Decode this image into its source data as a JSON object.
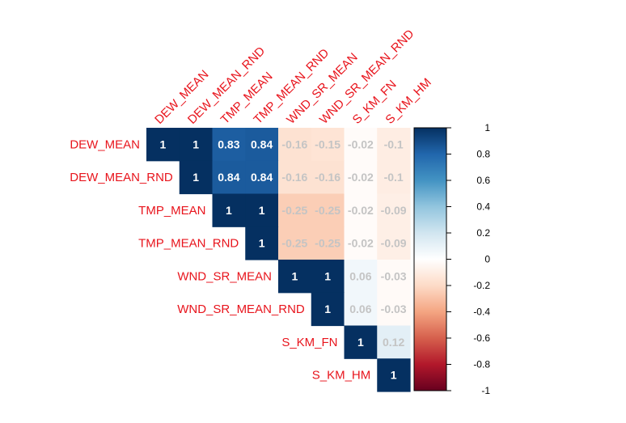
{
  "chart_data": {
    "type": "heatmap",
    "variables": [
      "DEW_MEAN",
      "DEW_MEAN_RND",
      "TMP_MEAN",
      "TMP_MEAN_RND",
      "WND_SR_MEAN",
      "WND_SR_MEAN_RND",
      "S_KM_FN",
      "S_KM_HM"
    ],
    "matrix": [
      [
        1,
        1,
        0.83,
        0.84,
        -0.16,
        -0.15,
        -0.02,
        -0.1
      ],
      [
        null,
        1,
        0.84,
        0.84,
        -0.16,
        -0.16,
        -0.02,
        -0.1
      ],
      [
        null,
        null,
        1,
        1,
        -0.25,
        -0.25,
        -0.02,
        -0.09
      ],
      [
        null,
        null,
        null,
        1,
        -0.25,
        -0.25,
        -0.02,
        -0.09
      ],
      [
        null,
        null,
        null,
        null,
        1,
        1,
        0.06,
        -0.03
      ],
      [
        null,
        null,
        null,
        null,
        null,
        1,
        0.06,
        -0.03
      ],
      [
        null,
        null,
        null,
        null,
        null,
        null,
        1,
        0.12
      ],
      [
        null,
        null,
        null,
        null,
        null,
        null,
        null,
        1
      ]
    ],
    "color_scale": {
      "range": [
        -1,
        1
      ],
      "ticks": [
        "1",
        "0.8",
        "0.6",
        "0.4",
        "0.2",
        "0",
        "-0.2",
        "-0.4",
        "-0.6",
        "-0.8",
        "-1"
      ],
      "low_color": "#67001f",
      "mid_color": "#ffffff",
      "high_color": "#053061"
    },
    "label_color": "#e8141c",
    "layout": "upper-triangle",
    "legend": "right"
  }
}
